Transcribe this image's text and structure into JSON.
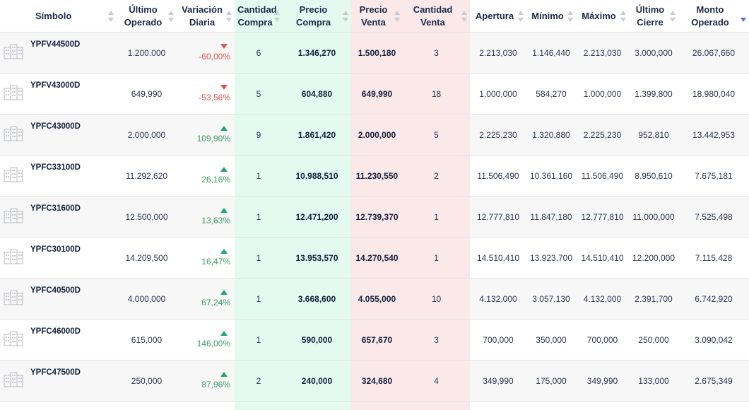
{
  "table": {
    "headers": [
      "Símbolo",
      "Último Operado",
      "Variación Diaria",
      "Cantidad Compra",
      "Precio Compra",
      "Precio Venta",
      "Cantidad Venta",
      "Apertura",
      "Mínimo",
      "Máximo",
      "Último Cierre",
      "Monto Operado"
    ],
    "rows": [
      [
        "YPFV44500D",
        "1.200.000",
        "-60,00%",
        "6",
        "1.346,270",
        "1.500,180",
        "3",
        "2.213,030",
        "1.146,440",
        "2.213,030",
        "3.000,000",
        "26.067,660"
      ],
      [
        "YPFV43000D",
        "649,990",
        "-53,56%",
        "5",
        "604,880",
        "649,990",
        "18",
        "1.000,000",
        "584,270",
        "1.000,000",
        "1.399,800",
        "18.980,040"
      ],
      [
        "YPFC43000D",
        "2.000,000",
        "109,90%",
        "9",
        "1.861,420",
        "2.000,000",
        "5",
        "2.225,230",
        "1.320,880",
        "2.225,230",
        "952,810",
        "13.442,953"
      ],
      [
        "YPFC33100D",
        "11.292,620",
        "26,16%",
        "1",
        "10.988,510",
        "11.230,550",
        "2",
        "11.506,490",
        "10.361,160",
        "11.506,490",
        "8.950,610",
        "7.675,181"
      ],
      [
        "YPFC31600D",
        "12.500,000",
        "13,63%",
        "1",
        "12.471,200",
        "12.739,370",
        "1",
        "12.777,810",
        "11.847,180",
        "12.777,810",
        "11.000,000",
        "7.525,498"
      ],
      [
        "YPFC30100D",
        "14.209,500",
        "16,47%",
        "1",
        "13.953,570",
        "14.270,540",
        "1",
        "14.510,410",
        "13.923,700",
        "14.510,410",
        "12.200,000",
        "7.115,428"
      ],
      [
        "YPFC40500D",
        "4.000,000",
        "67,24%",
        "1",
        "3.668,600",
        "4.055,000",
        "10",
        "4.132,000",
        "3.057,130",
        "4.132,000",
        "2.391,700",
        "6.742,920"
      ],
      [
        "YPFC46000D",
        "615,000",
        "146,00%",
        "1",
        "590,000",
        "657,670",
        "3",
        "700,000",
        "350,000",
        "700,000",
        "250,000",
        "3.090,042"
      ],
      [
        "YPFC47500D",
        "250,000",
        "87,96%",
        "2",
        "240,000",
        "324,680",
        "4",
        "349,990",
        "175,000",
        "349,990",
        "133,000",
        "2.675,349"
      ]
    ]
  }
}
